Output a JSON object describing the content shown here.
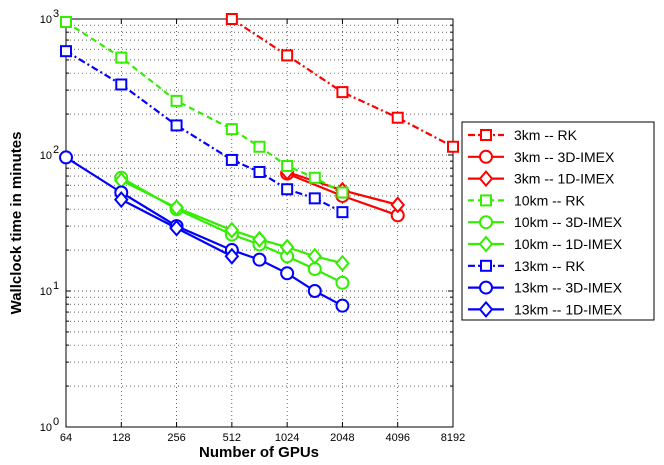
{
  "chart_data": {
    "type": "line",
    "xlabel": "Number of GPUs",
    "ylabel": "Wallclock time in minutes",
    "xscale": "log2",
    "yscale": "log10",
    "xlim": [
      64,
      8192
    ],
    "ylim": [
      1,
      1000
    ],
    "xticks": [
      "64",
      "128",
      "256",
      "512",
      "1024",
      "2048",
      "4096",
      "8192"
    ],
    "yticks": [
      {
        "base": "10",
        "exp": "0"
      },
      {
        "base": "10",
        "exp": "1"
      },
      {
        "base": "10",
        "exp": "2"
      },
      {
        "base": "10",
        "exp": "3"
      }
    ],
    "grid": true,
    "legend_position": "right",
    "series": [
      {
        "name": "3km   -- RK",
        "color": "#ff0000",
        "marker": "square",
        "dash": "dashdot",
        "x": [
          512,
          1024,
          2048,
          4096,
          8192
        ],
        "y": [
          1000,
          540,
          290,
          188,
          115
        ]
      },
      {
        "name": "3km   -- 3D-IMEX",
        "color": "#ff0000",
        "marker": "circle",
        "dash": "solid",
        "x": [
          1024,
          2048,
          4096
        ],
        "y": [
          73,
          50,
          36
        ]
      },
      {
        "name": "3km   -- 1D-IMEX",
        "color": "#ff0000",
        "marker": "diamond",
        "dash": "solid",
        "x": [
          1024,
          2048,
          4096
        ],
        "y": [
          75,
          55,
          43
        ]
      },
      {
        "name": "10km  -- RK",
        "color": "#33ee00",
        "marker": "square",
        "dash": "dashed",
        "x": [
          64,
          128,
          256,
          512,
          724,
          1024,
          1448,
          2048
        ],
        "y": [
          950,
          520,
          250,
          155,
          115,
          83,
          68,
          53
        ]
      },
      {
        "name": "10km  -- 3D-IMEX",
        "color": "#33ee00",
        "marker": "circle",
        "dash": "solid",
        "x": [
          128,
          256,
          512,
          724,
          1024,
          1448,
          2048
        ],
        "y": [
          68,
          40,
          26,
          22,
          18,
          14.5,
          11.5
        ]
      },
      {
        "name": "10km  -- 1D-IMEX",
        "color": "#33ee00",
        "marker": "diamond",
        "dash": "solid",
        "x": [
          128,
          256,
          512,
          724,
          1024,
          1448,
          2048
        ],
        "y": [
          65,
          41,
          28,
          24,
          21,
          18,
          16
        ]
      },
      {
        "name": "13km  -- RK",
        "color": "#0000ff",
        "marker": "square",
        "dash": "dashdot",
        "x": [
          64,
          128,
          256,
          512,
          724,
          1024,
          1448,
          2048
        ],
        "y": [
          580,
          330,
          165,
          92,
          75,
          56,
          48,
          38
        ]
      },
      {
        "name": "13km  -- 3D-IMEX",
        "color": "#0000ff",
        "marker": "circle",
        "dash": "solid",
        "x": [
          64,
          128,
          256,
          512,
          724,
          1024,
          1448,
          2048
        ],
        "y": [
          96,
          53,
          30,
          20,
          17,
          13.5,
          10,
          7.8
        ]
      },
      {
        "name": "13km  -- 1D-IMEX",
        "color": "#0000ff",
        "marker": "diamond",
        "dash": "solid",
        "x": [
          128,
          256,
          512
        ],
        "y": [
          47,
          29,
          18
        ]
      }
    ]
  }
}
